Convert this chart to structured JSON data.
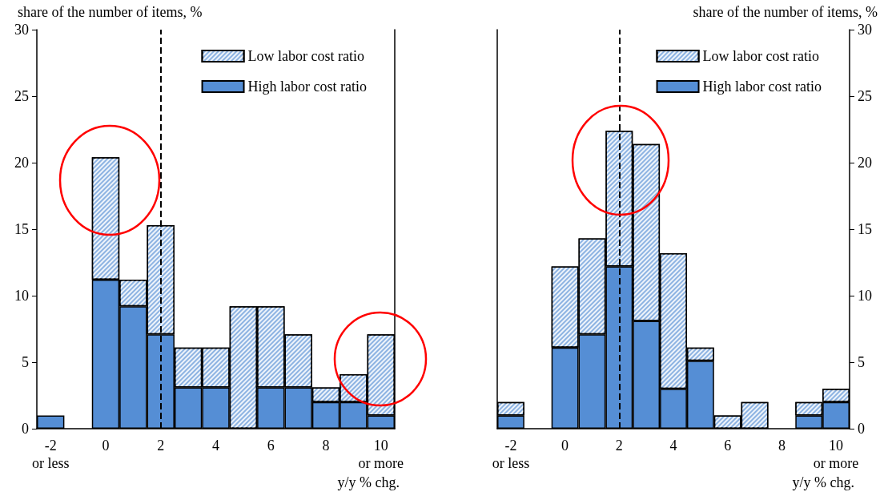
{
  "chart_data": [
    {
      "type": "bar",
      "stacked": true,
      "ylabel": "share of the number of items, %",
      "xlabel": "y/y % chg.",
      "categories": [
        "-2\nor less",
        null,
        "0",
        null,
        "2",
        null,
        "4",
        null,
        "6",
        null,
        "8",
        null,
        "10\nor more"
      ],
      "series": [
        {
          "name": "High labor cost ratio",
          "color": "#558ed5",
          "values": [
            1.0,
            0,
            11.2,
            9.2,
            7.1,
            3.1,
            3.1,
            0,
            3.1,
            3.1,
            2.0,
            2.0,
            1.0
          ]
        },
        {
          "name": "Low labor cost ratio",
          "color": "#8db3e2",
          "values": [
            0,
            0,
            9.2,
            2.0,
            8.2,
            3.0,
            3.0,
            9.2,
            6.1,
            4.0,
            1.1,
            2.1,
            6.1
          ]
        }
      ],
      "ylim": [
        0,
        30
      ],
      "yticks": [
        0,
        5,
        10,
        15,
        20,
        25,
        30
      ],
      "ref_lines": [
        {
          "axis": "x",
          "value": "2",
          "line_style": "dashed",
          "color": "#000000"
        }
      ],
      "legend": "top right",
      "grid": false
    },
    {
      "type": "bar",
      "stacked": true,
      "ylabel": "share of the number of items, %",
      "xlabel": "y/y % chg.",
      "categories": [
        "-2\nor less",
        null,
        "0",
        null,
        "2",
        null,
        "4",
        null,
        "6",
        null,
        "8",
        null,
        "10\nor more"
      ],
      "series": [
        {
          "name": "High labor cost ratio",
          "color": "#558ed5",
          "values": [
            1.0,
            0,
            6.1,
            7.1,
            12.2,
            8.1,
            3.0,
            5.1,
            0,
            0,
            0,
            1.0,
            2.0
          ]
        },
        {
          "name": "Low labor cost ratio",
          "color": "#8db3e2",
          "values": [
            1.0,
            0,
            6.1,
            7.2,
            10.2,
            13.3,
            10.2,
            1.0,
            1.0,
            2.0,
            0,
            1.0,
            1.0
          ]
        }
      ],
      "ylim": [
        0,
        30
      ],
      "yticks": [
        0,
        5,
        10,
        15,
        20,
        25,
        30
      ],
      "ref_lines": [
        {
          "axis": "x",
          "value": "2",
          "line_style": "dashed",
          "color": "#000000"
        }
      ],
      "legend": "top right",
      "grid": false
    }
  ]
}
